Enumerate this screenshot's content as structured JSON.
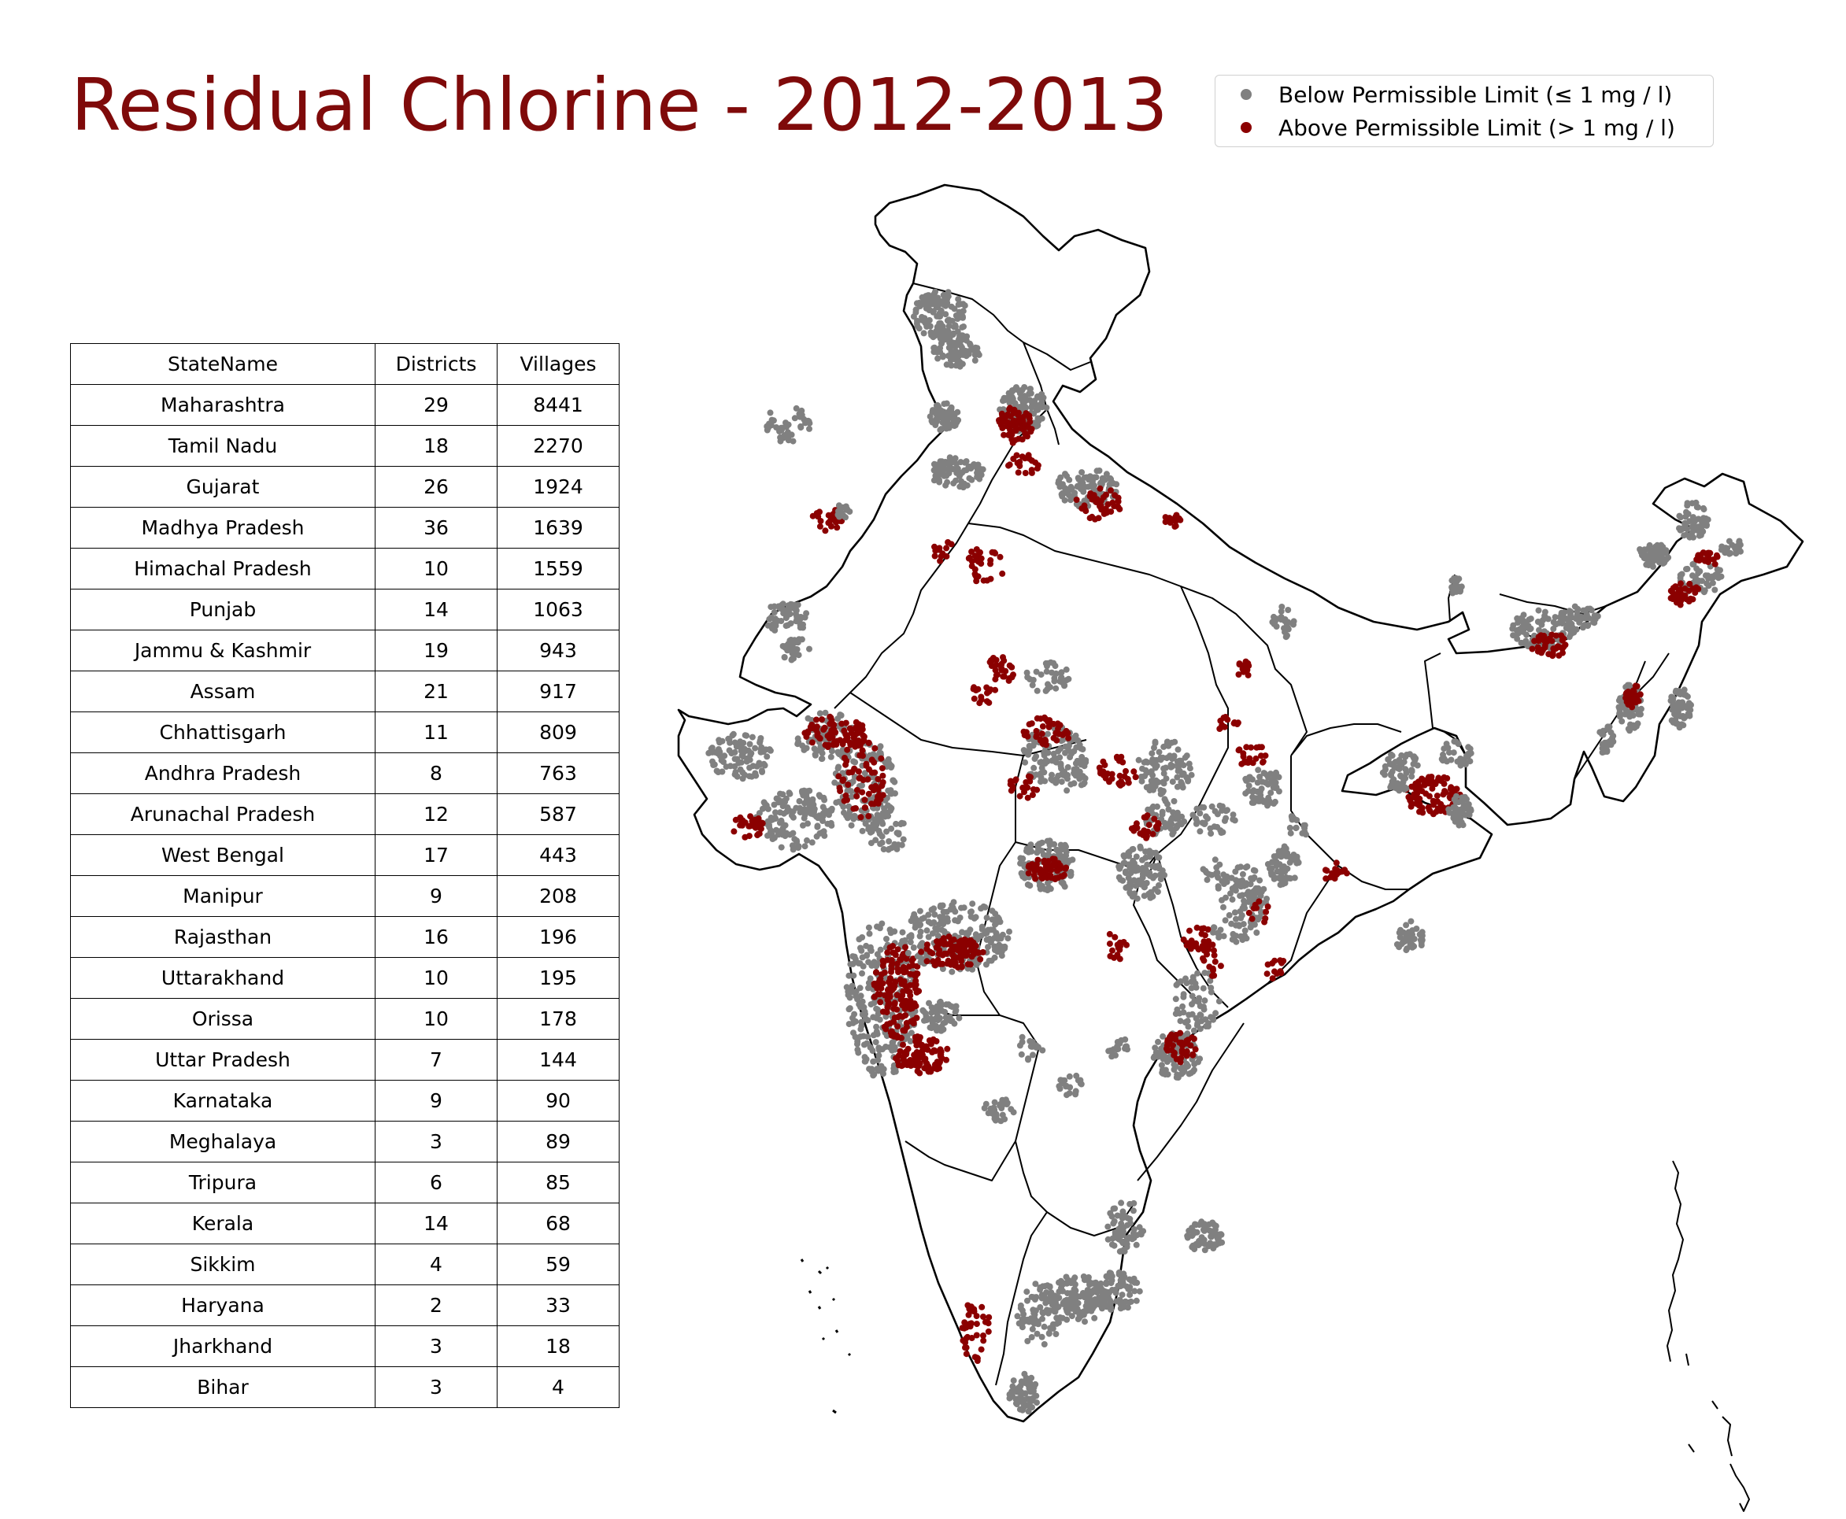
{
  "title": "Residual Chlorine - 2012-2013",
  "colors": {
    "title": "#7f0a0a",
    "below": "#808080",
    "above": "#8b0000",
    "outline": "#000000"
  },
  "legend": {
    "below_label": "Below Permissible Limit (≤ 1 mg / l)",
    "above_label": "Above Permissible Limit (> 1 mg / l)"
  },
  "table": {
    "headers": [
      "StateName",
      "Districts",
      "Villages"
    ],
    "rows": [
      [
        "Maharashtra",
        "29",
        "8441"
      ],
      [
        "Tamil Nadu",
        "18",
        "2270"
      ],
      [
        "Gujarat",
        "26",
        "1924"
      ],
      [
        "Madhya Pradesh",
        "36",
        "1639"
      ],
      [
        "Himachal Pradesh",
        "10",
        "1559"
      ],
      [
        "Punjab",
        "14",
        "1063"
      ],
      [
        "Jammu & Kashmir",
        "19",
        "943"
      ],
      [
        "Assam",
        "21",
        "917"
      ],
      [
        "Chhattisgarh",
        "11",
        "809"
      ],
      [
        "Andhra Pradesh",
        "8",
        "763"
      ],
      [
        "Arunachal Pradesh",
        "12",
        "587"
      ],
      [
        "West Bengal",
        "17",
        "443"
      ],
      [
        "Manipur",
        "9",
        "208"
      ],
      [
        "Rajasthan",
        "16",
        "196"
      ],
      [
        "Uttarakhand",
        "10",
        "195"
      ],
      [
        "Orissa",
        "10",
        "178"
      ],
      [
        "Uttar Pradesh",
        "7",
        "144"
      ],
      [
        "Karnataka",
        "9",
        "90"
      ],
      [
        "Meghalaya",
        "3",
        "89"
      ],
      [
        "Tripura",
        "6",
        "85"
      ],
      [
        "Kerala",
        "14",
        "68"
      ],
      [
        "Sikkim",
        "4",
        "59"
      ],
      [
        "Haryana",
        "2",
        "33"
      ],
      [
        "Jharkhand",
        "3",
        "18"
      ],
      [
        "Bihar",
        "3",
        "4"
      ]
    ]
  }
}
